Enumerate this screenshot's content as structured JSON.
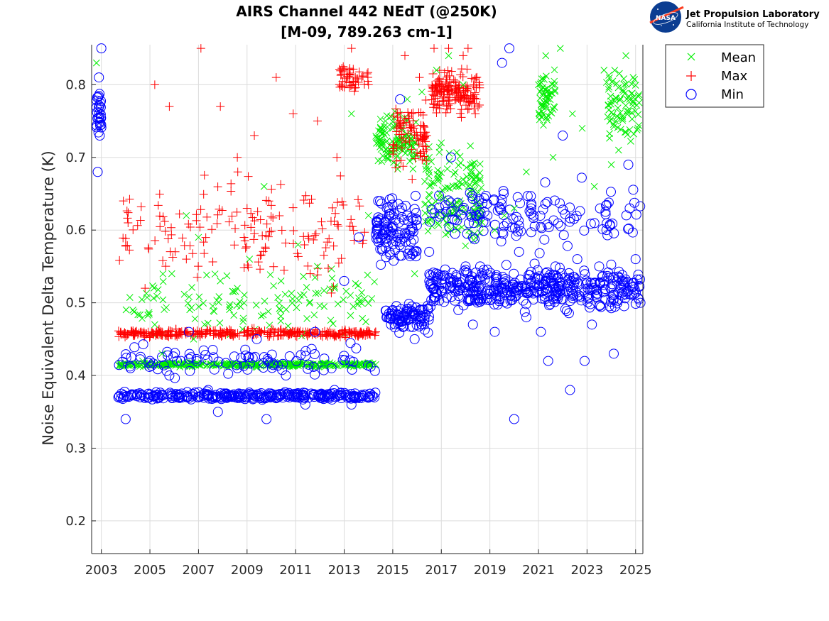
{
  "chart_data": {
    "type": "scatter",
    "title": "AIRS Channel 442 NEdT (@250K)",
    "subtitle": "[M-09, 789.263 cm-1]",
    "xlabel": "",
    "ylabel": "Noise Equivalent Delta Temperature (K)",
    "xlim": [
      2002.6,
      2025.3
    ],
    "ylim": [
      0.155,
      0.855
    ],
    "x_ticks": [
      2003,
      2005,
      2007,
      2009,
      2011,
      2013,
      2015,
      2017,
      2019,
      2021,
      2023,
      2025
    ],
    "x_tick_labels": [
      "2003",
      "2005",
      "2007",
      "2009",
      "2011",
      "2013",
      "2015",
      "2017",
      "2019",
      "2021",
      "2023",
      "2025"
    ],
    "y_ticks": [
      0.2,
      0.3,
      0.4,
      0.5,
      0.6,
      0.7,
      0.8
    ],
    "y_tick_labels": [
      "0.2",
      "0.3",
      "0.4",
      "0.5",
      "0.6",
      "0.7",
      "0.8"
    ],
    "grid": true,
    "legend_position": "outside-top-right",
    "series": [
      {
        "name": "Mean",
        "marker": "x",
        "color": "#00ee00",
        "x": [
          2002.8,
          2003.8,
          2004.3,
          2004.7,
          2005.2,
          2005.5,
          2005.9,
          2006.3,
          2006.5,
          2006.8,
          2007.0,
          2007.5,
          2007.9,
          2008.3,
          2008.6,
          2008.9,
          2009.1,
          2009.4,
          2009.7,
          2010.0,
          2010.4,
          2010.8,
          2011.1,
          2011.5,
          2011.9,
          2012.2,
          2012.6,
          2013.0,
          2013.3,
          2013.7,
          2014.0,
          2014.3,
          2014.7,
          2015.0,
          2015.3,
          2015.6,
          2015.9,
          2016.2,
          2016.5,
          2016.8,
          2017.0,
          2017.3,
          2017.6,
          2017.9,
          2018.2,
          2018.5,
          2019.2,
          2019.6,
          2020.0,
          2020.5,
          2021.0,
          2021.3,
          2021.6,
          2021.9,
          2022.4,
          2022.8,
          2023.3,
          2023.7,
          2024.0,
          2024.3,
          2024.6,
          2024.9,
          2025.1
        ],
        "y": [
          0.83,
          0.415,
          0.49,
          0.42,
          0.47,
          0.43,
          0.54,
          0.415,
          0.62,
          0.45,
          0.59,
          0.415,
          0.53,
          0.415,
          0.52,
          0.415,
          0.56,
          0.415,
          0.66,
          0.415,
          0.53,
          0.415,
          0.58,
          0.415,
          0.55,
          0.415,
          0.52,
          0.415,
          0.76,
          0.415,
          0.62,
          0.415,
          0.75,
          0.74,
          0.72,
          0.78,
          0.54,
          0.79,
          0.7,
          0.82,
          0.72,
          0.84,
          0.66,
          0.8,
          0.69,
          0.63,
          0.6,
          0.62,
          0.63,
          0.68,
          0.8,
          0.84,
          0.7,
          0.85,
          0.76,
          0.74,
          0.66,
          0.82,
          0.69,
          0.71,
          0.84,
          0.81,
          0.74
        ]
      },
      {
        "name": "Max",
        "marker": "+",
        "color": "#ff0000",
        "x": [
          2003.8,
          2004.1,
          2004.4,
          2004.8,
          2005.2,
          2005.5,
          2005.8,
          2006.2,
          2006.5,
          2006.8,
          2007.1,
          2007.5,
          2007.9,
          2008.2,
          2008.6,
          2008.9,
          2009.0,
          2009.3,
          2009.6,
          2009.9,
          2010.2,
          2010.5,
          2010.9,
          2011.3,
          2011.6,
          2011.9,
          2012.3,
          2012.7,
          2013.0,
          2013.3,
          2013.7,
          2014.0,
          2014.3,
          2015.2,
          2015.5,
          2015.8,
          2016.1,
          2016.4,
          2016.7,
          2017.0,
          2017.3,
          2017.6,
          2017.9,
          2018.1,
          2018.4
        ],
        "y": [
          0.46,
          0.61,
          0.46,
          0.52,
          0.8,
          0.46,
          0.77,
          0.46,
          0.56,
          0.46,
          0.85,
          0.46,
          0.77,
          0.46,
          0.7,
          0.46,
          0.63,
          0.73,
          0.46,
          0.64,
          0.81,
          0.46,
          0.76,
          0.46,
          0.54,
          0.75,
          0.46,
          0.7,
          0.46,
          0.85,
          0.46,
          0.8,
          0.46,
          0.76,
          0.84,
          0.67,
          0.81,
          0.73,
          0.85,
          0.8,
          0.85,
          0.78,
          0.84,
          0.85,
          0.76
        ]
      },
      {
        "name": "Min",
        "marker": "o",
        "color": "#0000ff",
        "x": [
          2002.85,
          2002.9,
          2003.0,
          2003.7,
          2004.0,
          2004.2,
          2004.6,
          2005.0,
          2005.4,
          2005.8,
          2006.2,
          2006.6,
          2007.0,
          2007.4,
          2007.8,
          2008.2,
          2008.6,
          2009.0,
          2009.4,
          2009.8,
          2010.2,
          2010.6,
          2011.0,
          2011.4,
          2011.8,
          2012.2,
          2012.6,
          2013.0,
          2013.3,
          2013.6,
          2014.0,
          2014.4,
          2014.7,
          2015.0,
          2015.3,
          2015.6,
          2015.9,
          2016.2,
          2016.5,
          2016.8,
          2017.1,
          2017.4,
          2017.7,
          2018.0,
          2018.3,
          2018.6,
          2018.9,
          2019.2,
          2019.5,
          2019.8,
          2020.0,
          2020.2,
          2020.5,
          2020.8,
          2021.1,
          2021.4,
          2021.7,
          2022.0,
          2022.3,
          2022.6,
          2022.9,
          2023.2,
          2023.5,
          2023.8,
          2024.1,
          2024.4,
          2024.7,
          2025.0,
          2025.2
        ],
        "y": [
          0.68,
          0.81,
          0.85,
          0.37,
          0.34,
          0.41,
          0.37,
          0.42,
          0.37,
          0.4,
          0.37,
          0.46,
          0.37,
          0.38,
          0.35,
          0.37,
          0.41,
          0.37,
          0.45,
          0.34,
          0.37,
          0.4,
          0.37,
          0.36,
          0.46,
          0.37,
          0.38,
          0.53,
          0.36,
          0.59,
          0.37,
          0.64,
          0.61,
          0.49,
          0.78,
          0.62,
          0.45,
          0.47,
          0.57,
          0.53,
          0.52,
          0.7,
          0.49,
          0.55,
          0.47,
          0.55,
          0.62,
          0.46,
          0.83,
          0.85,
          0.34,
          0.57,
          0.48,
          0.62,
          0.46,
          0.42,
          0.55,
          0.73,
          0.38,
          0.56,
          0.42,
          0.47,
          0.55,
          0.6,
          0.43,
          0.52,
          0.69,
          0.56,
          0.5
        ]
      }
    ]
  },
  "legend": {
    "items": [
      "Mean",
      "Max",
      "Min"
    ]
  },
  "logo": {
    "org": "Jet Propulsion Laboratory",
    "sub": "California Institute of Technology",
    "badge": "NASA"
  }
}
